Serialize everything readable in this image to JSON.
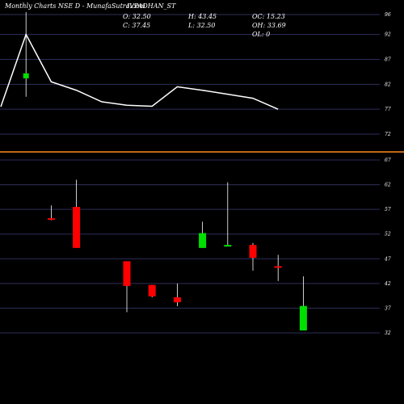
{
  "header": {
    "title": "Monthly Charts NSE D  -  MunafaSutra.com",
    "symbol": "IVPADHAN_ST",
    "open": "O: 32.50",
    "high": "H: 43.45",
    "oc": "OC: 15.23",
    "close": "C: 37.45",
    "low": "L: 32.50",
    "oh": "OH: 33.69",
    "ol": "OL: 0"
  },
  "colors": {
    "background": "#000000",
    "grid": "#2e2e5a",
    "up": "#00e000",
    "down": "#ff0000",
    "line": "#ffffff",
    "separator": "#ff8c1a"
  },
  "chart_data": [
    {
      "type": "line",
      "x": [
        0,
        1,
        2,
        3,
        4,
        5,
        6,
        7,
        8,
        9,
        10,
        11
      ],
      "values": [
        77.5,
        92,
        82.5,
        80.8,
        78.5,
        77.8,
        77.6,
        81.5,
        80.8,
        80,
        79.2,
        77
      ],
      "marker": {
        "x": 1,
        "open": 83.2,
        "close": 84.2,
        "high": 96.5,
        "low": 79.5
      },
      "y_ticks": [
        72,
        77,
        82,
        87,
        92,
        96
      ],
      "ylim": [
        69.5,
        96.5
      ]
    },
    {
      "type": "candlestick",
      "candles": [
        {
          "x": 2,
          "open": 55.2,
          "close": 55.0,
          "high": 57.8,
          "low": 54.8
        },
        {
          "x": 3,
          "open": 57.5,
          "close": 49.2,
          "high": 63.0,
          "low": 49.2
        },
        {
          "x": 5,
          "open": 46.5,
          "close": 41.5,
          "high": 46.5,
          "low": 36.2
        },
        {
          "x": 6,
          "open": 41.7,
          "close": 39.4,
          "high": 41.7,
          "low": 39.2
        },
        {
          "x": 7,
          "open": 39.2,
          "close": 38.2,
          "high": 42.0,
          "low": 37.4
        },
        {
          "x": 8,
          "open": 49.2,
          "close": 52.2,
          "high": 54.5,
          "low": 49.2
        },
        {
          "x": 9,
          "open": 49.5,
          "close": 49.8,
          "high": 62.5,
          "low": 49.5
        },
        {
          "x": 10,
          "open": 49.8,
          "close": 47.2,
          "high": 50.2,
          "low": 44.6
        },
        {
          "x": 11,
          "open": 45.5,
          "close": 45.2,
          "high": 47.8,
          "low": 42.5
        },
        {
          "x": 12,
          "open": 32.5,
          "close": 37.45,
          "high": 43.45,
          "low": 32.5
        }
      ],
      "y_ticks": [
        32,
        37,
        42,
        47,
        52,
        57,
        62,
        67
      ],
      "ylim": [
        29.5,
        68
      ]
    }
  ]
}
